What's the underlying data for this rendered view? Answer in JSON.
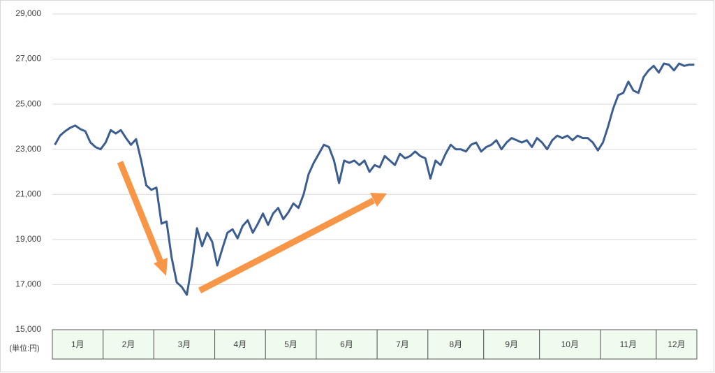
{
  "chart_data": {
    "type": "line",
    "unit_label": "(単位:円)",
    "color": "#3b5d8f",
    "grid": true,
    "ylim": [
      15000,
      29000
    ],
    "yticks": [
      {
        "value": 15000,
        "label": "15,000"
      },
      {
        "value": 17000,
        "label": "17,000"
      },
      {
        "value": 19000,
        "label": "19,000"
      },
      {
        "value": 21000,
        "label": "21,000"
      },
      {
        "value": 23000,
        "label": "23,000"
      },
      {
        "value": 25000,
        "label": "25,000"
      },
      {
        "value": 27000,
        "label": "27,000"
      },
      {
        "value": 29000,
        "label": "29,000"
      }
    ],
    "months": [
      {
        "label": "1月",
        "values": [
          23200,
          23600,
          23800,
          23950,
          24050,
          23900,
          23800,
          23300,
          23100,
          23000
        ]
      },
      {
        "label": "2月",
        "values": [
          23300,
          23850,
          23700,
          23850,
          23500,
          23200,
          23450,
          22500,
          21400,
          21200
        ]
      },
      {
        "label": "3月",
        "values": [
          21300,
          19700,
          19800,
          18200,
          17100,
          16900,
          16550,
          17900,
          19500,
          18700,
          19300,
          18900
        ]
      },
      {
        "label": "4月",
        "values": [
          17850,
          18600,
          19300,
          19450,
          19050,
          19600,
          19850,
          19300,
          19700,
          20150
        ]
      },
      {
        "label": "5月",
        "values": [
          19650,
          20150,
          20400,
          19900,
          20200,
          20600,
          20400,
          21000,
          21900,
          22400
        ]
      },
      {
        "label": "6月",
        "values": [
          22800,
          23200,
          23100,
          22500,
          21500,
          22500,
          22400,
          22500,
          22300,
          22500,
          22000,
          22300
        ]
      },
      {
        "label": "7月",
        "values": [
          22200,
          22700,
          22500,
          22300,
          22800,
          22600,
          22700,
          22900,
          22700,
          22600
        ]
      },
      {
        "label": "8月",
        "values": [
          21700,
          22500,
          22300,
          22800,
          23200,
          23000,
          23000,
          22900,
          23200,
          23300,
          22900
        ]
      },
      {
        "label": "9月",
        "values": [
          23100,
          23200,
          23400,
          23000,
          23300,
          23500,
          23400,
          23300,
          23400,
          23100,
          23500
        ]
      },
      {
        "label": "10月",
        "values": [
          23300,
          23000,
          23400,
          23600,
          23500,
          23600,
          23400,
          23600,
          23500,
          23500,
          23300,
          22950
        ]
      },
      {
        "label": "11月",
        "values": [
          23300,
          24000,
          24800,
          25400,
          25500,
          26000,
          25600,
          25500,
          26200,
          26500,
          26700
        ]
      },
      {
        "label": "12月",
        "values": [
          26400,
          26800,
          26750,
          26500,
          26800,
          26700,
          26750,
          26750
        ]
      }
    ]
  }
}
